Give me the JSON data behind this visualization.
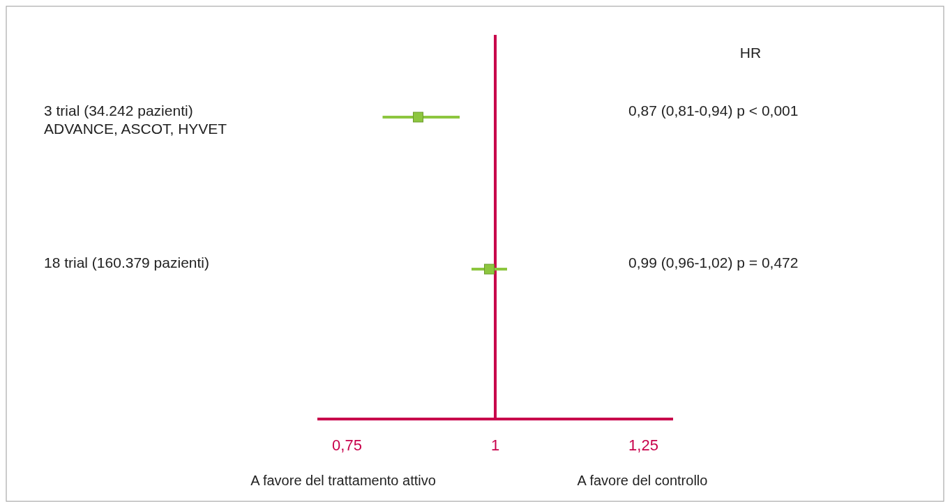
{
  "chart_data": {
    "type": "scatter",
    "orientation": "horizontal",
    "categories": [
      "3 trial (34.242 pazienti)\nADVANCE, ASCOT, HYVET",
      "18 trial (160.379 pazienti)"
    ],
    "values": [
      0.87,
      0.99
    ],
    "errors": [
      [
        0.81,
        0.94
      ],
      [
        0.96,
        1.02
      ]
    ],
    "value_labels": [
      "0,87 (0,81-0,94) p < 0,001",
      "0,99 (0,96-1,02) p = 0,472"
    ],
    "legend_title": "HR",
    "color": "#8dc63f",
    "marker": "square",
    "xlim": [
      0.7,
      1.3
    ],
    "xticks": [
      {
        "value": 0.75,
        "label": "0,75"
      },
      1,
      {
        "value": 1.25,
        "label": "1,25"
      }
    ],
    "ref_lines": [
      {
        "axis": "x",
        "value": 1,
        "color": "#c8004b"
      }
    ],
    "annotations": [
      "A favore del trattamento attivo",
      "A favore del controllo"
    ]
  }
}
